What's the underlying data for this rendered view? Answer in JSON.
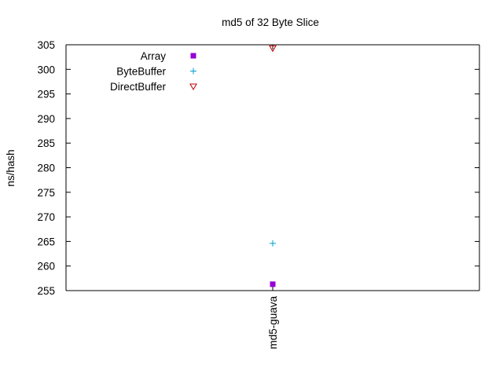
{
  "chart_data": {
    "type": "scatter",
    "title": "md5 of 32 Byte Slice",
    "xlabel": "",
    "ylabel": "ns/hash",
    "categories": [
      "md5-guava"
    ],
    "ylim": [
      255,
      305
    ],
    "yticks": [
      255,
      260,
      265,
      270,
      275,
      280,
      285,
      290,
      295,
      300,
      305
    ],
    "grid": false,
    "legend_position": "top-left",
    "series": [
      {
        "name": "Array",
        "marker": "filled-square",
        "color": "#9400d3",
        "values": [
          256.3
        ]
      },
      {
        "name": "ByteBuffer",
        "marker": "plus",
        "color": "#009ed0",
        "values": [
          264.6
        ]
      },
      {
        "name": "DirectBuffer",
        "marker": "open-triangle-down",
        "color": "#c00000",
        "values": [
          304.3
        ]
      }
    ]
  }
}
